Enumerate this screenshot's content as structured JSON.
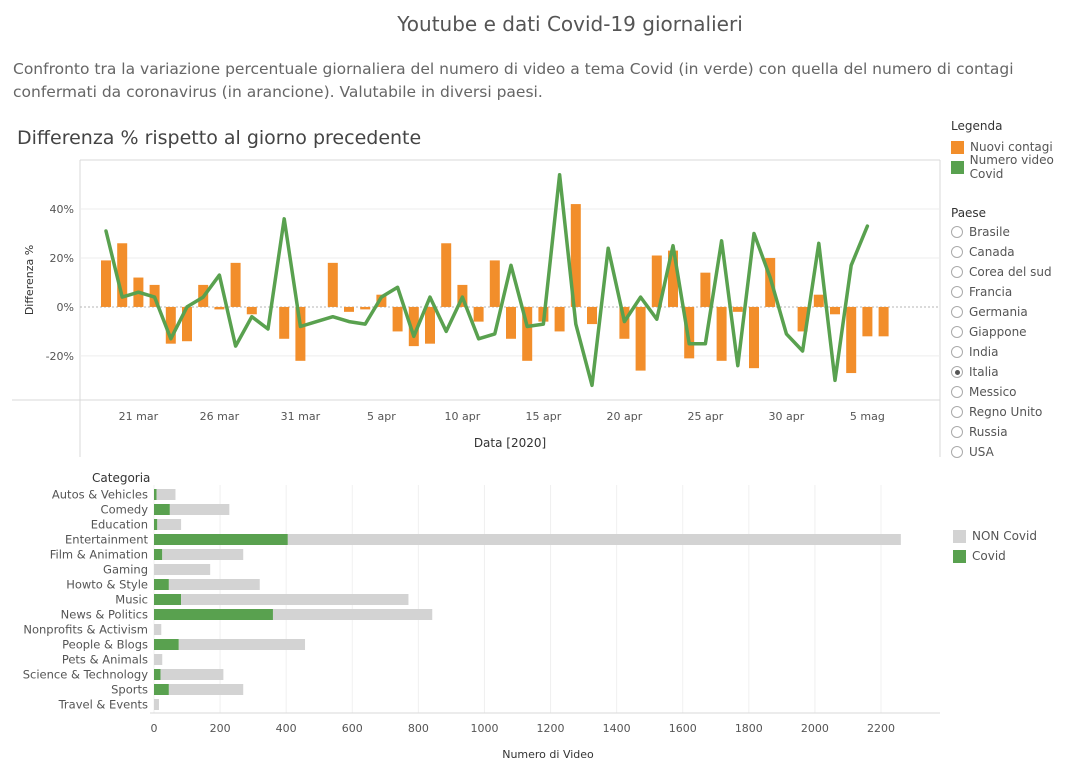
{
  "title": "Youtube e dati Covid-19 giornalieri",
  "subtitle": "Confronto tra la variazione percentuale giornaliera del numero di video a tema Covid (in verde) con quella del numero di contagi confermati da coronavirus (in arancione). Valutabile in diversi paesi.",
  "legend": {
    "title": "Legenda",
    "items": [
      {
        "label": "Nuovi contagi",
        "color": "#f28e2b"
      },
      {
        "label": "Numero video Covid",
        "color": "#59a14f"
      }
    ]
  },
  "country_filter": {
    "title": "Paese",
    "options": [
      "Brasile",
      "Canada",
      "Corea del sud",
      "Francia",
      "Germania",
      "Giappone",
      "India",
      "Italia",
      "Messico",
      "Regno Unito",
      "Russia",
      "USA"
    ],
    "selected": "Italia"
  },
  "category_legend": {
    "items": [
      {
        "label": "NON Covid",
        "color": "#d3d3d3"
      },
      {
        "label": "Covid",
        "color": "#59a14f"
      }
    ]
  },
  "chart_data": [
    {
      "type": "bar+line",
      "title": "Differenza % rispetto al giorno precedente",
      "xlabel": "Data [2020]",
      "ylabel": "Differenza %",
      "x_tick_labels": [
        "21 mar",
        "26 mar",
        "31 mar",
        "5 apr",
        "10 apr",
        "15 apr",
        "20 apr",
        "25 apr",
        "30 apr",
        "5 mag"
      ],
      "y_tick_labels": [
        "-20%",
        "0%",
        "20%",
        "40%"
      ],
      "ylim": [
        -38,
        60
      ],
      "x": [
        "2020-03-19",
        "2020-03-20",
        "2020-03-21",
        "2020-03-22",
        "2020-03-23",
        "2020-03-24",
        "2020-03-25",
        "2020-03-26",
        "2020-03-27",
        "2020-03-28",
        "2020-03-29",
        "2020-03-30",
        "2020-03-31",
        "2020-04-01",
        "2020-04-02",
        "2020-04-03",
        "2020-04-04",
        "2020-04-05",
        "2020-04-06",
        "2020-04-07",
        "2020-04-08",
        "2020-04-09",
        "2020-04-10",
        "2020-04-11",
        "2020-04-12",
        "2020-04-13",
        "2020-04-14",
        "2020-04-15",
        "2020-04-16",
        "2020-04-17",
        "2020-04-18",
        "2020-04-19",
        "2020-04-20",
        "2020-04-21",
        "2020-04-22",
        "2020-04-23",
        "2020-04-24",
        "2020-04-25",
        "2020-04-26",
        "2020-04-27",
        "2020-04-28",
        "2020-04-29",
        "2020-04-30",
        "2020-05-01",
        "2020-05-02",
        "2020-05-03",
        "2020-05-04",
        "2020-05-05",
        "2020-05-06",
        "2020-05-07"
      ],
      "series": [
        {
          "name": "Nuovi contagi",
          "kind": "bar",
          "color": "#f28e2b",
          "values": [
            19,
            26,
            12,
            9,
            -15,
            -14,
            9,
            -1,
            18,
            -3,
            0,
            -13,
            -22,
            0,
            18,
            -2,
            -1,
            5,
            -10,
            -16,
            -15,
            26,
            9,
            -6,
            19,
            -13,
            -22,
            -6,
            -10,
            42,
            -7,
            0,
            -13,
            -26,
            21,
            23,
            -21,
            14,
            -22,
            -2,
            -25,
            20,
            0,
            -10,
            5,
            -3,
            -27,
            -12,
            -12,
            null
          ]
        },
        {
          "name": "Numero video Covid",
          "kind": "line",
          "color": "#59a14f",
          "values": [
            31,
            4,
            6,
            4,
            -13,
            0,
            4,
            13,
            -16,
            -4,
            -9,
            36,
            -8,
            -6,
            -4,
            -6,
            -7,
            4,
            8,
            -12,
            4,
            -10,
            4,
            -13,
            -11,
            17,
            -8,
            -7,
            54,
            -7,
            -32,
            24,
            -6,
            4,
            -5,
            25,
            -15,
            -15,
            27,
            -24,
            30,
            12,
            -11,
            -18,
            26,
            -30,
            17,
            33,
            null,
            null
          ]
        }
      ]
    },
    {
      "type": "bar",
      "orientation": "horizontal",
      "stacked": true,
      "legend_title": "Categoria",
      "xlabel": "Numero di Video",
      "x_tick_labels": [
        "0",
        "200",
        "400",
        "600",
        "800",
        "1000",
        "1200",
        "1400",
        "1600",
        "1800",
        "2000",
        "2200"
      ],
      "xlim": [
        0,
        2380
      ],
      "categories": [
        "Autos & Vehicles",
        "Comedy",
        "Education",
        "Entertainment",
        "Film & Animation",
        "Gaming",
        "Howto & Style",
        "Music",
        "News & Politics",
        "Nonprofits & Activism",
        "People & Blogs",
        "Pets & Animals",
        "Science & Technology",
        "Sports",
        "Travel & Events"
      ],
      "series": [
        {
          "name": "Covid",
          "color": "#59a14f",
          "values": [
            8,
            48,
            10,
            405,
            25,
            0,
            45,
            82,
            360,
            0,
            75,
            0,
            20,
            45,
            0
          ]
        },
        {
          "name": "NON Covid",
          "color": "#d3d3d3",
          "values": [
            57,
            180,
            72,
            1855,
            245,
            170,
            275,
            688,
            482,
            22,
            382,
            25,
            190,
            225,
            15
          ]
        }
      ]
    }
  ]
}
